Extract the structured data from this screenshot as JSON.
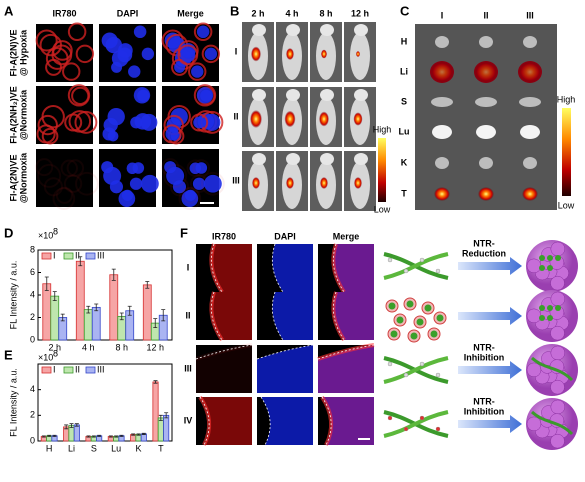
{
  "panels": {
    "A": {
      "letter": "A",
      "columns": [
        "IR780",
        "DAPI",
        "Merge"
      ],
      "rows": [
        [
          "Fl-A(2N)VE",
          "@ Hypoxia"
        ],
        [
          "Fl-A(2NH₂)VE",
          "@Normoxia"
        ],
        [
          "Fl-A(2N)VE",
          "@Normoxia"
        ]
      ]
    },
    "B": {
      "letter": "B",
      "columns": [
        "2 h",
        "4 h",
        "8 h",
        "12 h"
      ],
      "rows": [
        "I",
        "II",
        "III"
      ],
      "colorbar": [
        "High",
        "Low"
      ]
    },
    "C": {
      "letter": "C",
      "columns": [
        "I",
        "II",
        "III"
      ],
      "rows": [
        "H",
        "Li",
        "S",
        "Lu",
        "K",
        "T"
      ],
      "colorbar": [
        "High",
        "Low"
      ]
    },
    "F": {
      "letter": "F",
      "columns": [
        "IR780",
        "DAPI",
        "Merge"
      ],
      "rows": [
        "I",
        "II",
        "III",
        "IV"
      ],
      "schematic_labels": [
        [
          "NTR-",
          "Reduction"
        ],
        [
          "NTR-",
          "Inhibition"
        ],
        [
          "NTR-",
          "Inhibition"
        ]
      ]
    }
  },
  "chart_data": [
    {
      "panel": "D",
      "type": "bar",
      "y_label": "FL Intensity / a.u.",
      "y_multiplier": "×10",
      "y_multiplier_exponent": "8",
      "categories": [
        "2 h",
        "4 h",
        "8 h",
        "12 h"
      ],
      "series": [
        {
          "name": "I",
          "color": "#f6a5a5",
          "edge_color": "#d62f2f",
          "values": [
            5.0,
            7.0,
            5.8,
            4.9
          ],
          "errors": [
            0.6,
            0.4,
            0.5,
            0.3
          ]
        },
        {
          "name": "II",
          "color": "#bfe6ae",
          "edge_color": "#3a9a2a",
          "values": [
            3.9,
            2.7,
            2.1,
            1.5
          ],
          "errors": [
            0.4,
            0.3,
            0.3,
            0.4
          ]
        },
        {
          "name": "III",
          "color": "#aab4f2",
          "edge_color": "#3345c8",
          "values": [
            2.0,
            2.9,
            2.6,
            2.2
          ],
          "errors": [
            0.3,
            0.3,
            0.4,
            0.5
          ]
        }
      ],
      "ylim": [
        0,
        8
      ],
      "yticks": [
        0,
        2,
        4,
        6,
        8
      ],
      "legend": "upper left"
    },
    {
      "panel": "E",
      "type": "bar",
      "y_label": "FL Intensity / a.u.",
      "y_multiplier": "×10",
      "y_multiplier_exponent": "8",
      "categories": [
        "H",
        "Li",
        "S",
        "Lu",
        "K",
        "T"
      ],
      "series": [
        {
          "name": "I",
          "color": "#f6a5a5",
          "edge_color": "#d62f2f",
          "values": [
            0.35,
            1.1,
            0.35,
            0.35,
            0.5,
            4.6
          ],
          "errors": [
            0.05,
            0.15,
            0.05,
            0.05,
            0.05,
            0.1
          ]
        },
        {
          "name": "II",
          "color": "#bfe6ae",
          "edge_color": "#3a9a2a",
          "values": [
            0.4,
            1.2,
            0.35,
            0.35,
            0.5,
            1.8
          ],
          "errors": [
            0.05,
            0.15,
            0.05,
            0.05,
            0.05,
            0.2
          ]
        },
        {
          "name": "III",
          "color": "#aab4f2",
          "edge_color": "#3345c8",
          "values": [
            0.4,
            1.25,
            0.4,
            0.4,
            0.55,
            2.0
          ],
          "errors": [
            0.05,
            0.1,
            0.05,
            0.05,
            0.05,
            0.2
          ]
        }
      ],
      "ylim": [
        0,
        6
      ],
      "yticks": [
        0,
        2,
        4
      ],
      "legend": "upper left"
    }
  ]
}
